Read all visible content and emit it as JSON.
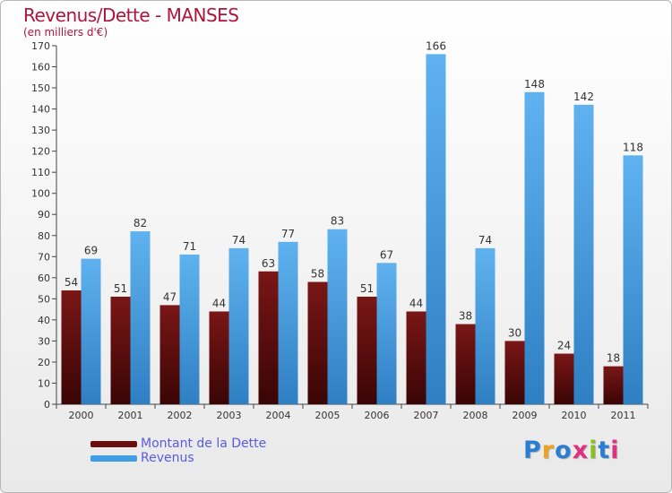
{
  "title": "Revenus/Dette - MANSES",
  "subtitle": "(en milliers d'€)",
  "logo": {
    "text": "Proxiti",
    "colors": [
      "#2a7ed2",
      "#f0a020",
      "#2a7ed2",
      "#e03080",
      "#8cbe28",
      "#2a7ed2",
      "#e03080"
    ]
  },
  "chart_data": {
    "type": "bar",
    "categories": [
      "2000",
      "2001",
      "2002",
      "2003",
      "2004",
      "2005",
      "2006",
      "2007",
      "2008",
      "2009",
      "2010",
      "2011"
    ],
    "series": [
      {
        "name": "Montant de la Dette",
        "values": [
          54,
          51,
          47,
          44,
          63,
          58,
          51,
          44,
          38,
          30,
          24,
          18
        ],
        "color": "#6a0f0f"
      },
      {
        "name": "Revenus",
        "values": [
          69,
          82,
          71,
          74,
          77,
          83,
          67,
          166,
          74,
          148,
          142,
          118
        ],
        "color": "#3f9ee3"
      }
    ],
    "yticks": [
      0,
      10,
      20,
      30,
      40,
      50,
      60,
      70,
      80,
      90,
      100,
      110,
      120,
      130,
      140,
      150,
      160,
      170
    ],
    "ylim": [
      0,
      170
    ],
    "grid": false,
    "legend_position": "bottom-left"
  }
}
